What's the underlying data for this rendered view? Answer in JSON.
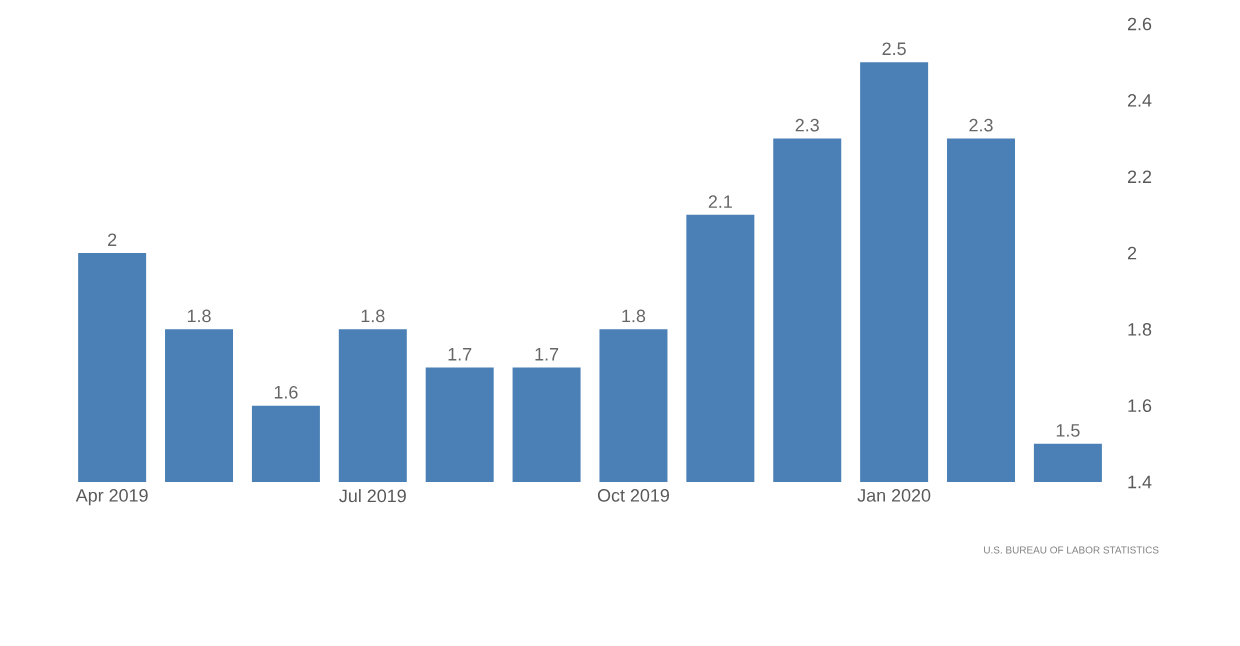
{
  "chart_data": {
    "type": "bar",
    "categories": [
      "Apr 2019",
      null,
      null,
      "Jul 2019",
      null,
      null,
      "Oct 2019",
      null,
      null,
      "Jan 2020",
      null,
      null
    ],
    "values": [
      2,
      1.8,
      1.6,
      1.8,
      1.7,
      1.7,
      1.8,
      2.1,
      2.3,
      2.5,
      2.3,
      1.5
    ],
    "color": "#4a80b6",
    "ylim": [
      1.4,
      2.6
    ],
    "yticks": [
      1.4,
      1.6,
      1.8,
      2,
      2.2,
      2.4,
      2.6
    ],
    "data_labels": true,
    "annotations": [
      "U.S. BUREAU OF LABOR STATISTICS"
    ]
  }
}
